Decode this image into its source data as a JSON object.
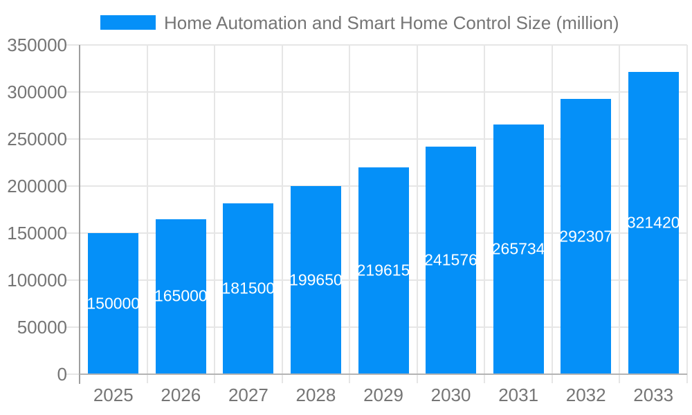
{
  "legend": {
    "label": "Home Automation and Smart Home Control Size (million)"
  },
  "chart_data": {
    "type": "bar",
    "title": "Home Automation and Smart Home Control Size (million)",
    "series": [
      {
        "name": "Home Automation and Smart Home Control Size (million)",
        "values": [
          150000,
          165000,
          181500,
          199650,
          219615,
          241576,
          265734,
          292307,
          321420
        ]
      }
    ],
    "categories": [
      "2025",
      "2026",
      "2027",
      "2028",
      "2029",
      "2030",
      "2031",
      "2032",
      "2033"
    ],
    "value_labels": [
      "150000",
      "165000",
      "181500",
      "199650",
      "219615",
      "241576",
      "265734",
      "292307",
      "321420"
    ],
    "xlabel": "",
    "ylabel": "",
    "ylim": [
      0,
      350000
    ],
    "yticks": [
      0,
      50000,
      100000,
      150000,
      200000,
      250000,
      300000,
      350000
    ],
    "ytick_labels": [
      "0",
      "50000",
      "100000",
      "150000",
      "200000",
      "250000",
      "300000",
      "350000"
    ],
    "grid": true,
    "legend_position": "top",
    "colors": {
      "bar": "#0590f8",
      "grid": "#e6e6e6",
      "axis_y": "#9e9e9e",
      "axis_x": "#b3b3b3",
      "tick_text": "#757575",
      "value_label_text": "#ffffff",
      "background": "#ffffff"
    }
  }
}
